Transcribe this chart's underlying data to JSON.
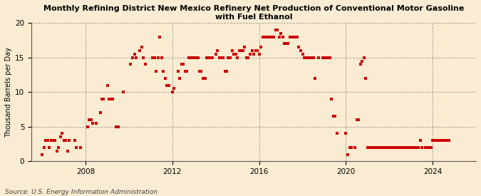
{
  "title": "Monthly Refining District New Mexico Refinery Net Production of Conventional Motor Gasoline\nwith Fuel Ethanol",
  "ylabel": "Thousand Barrels per Day",
  "source": "Source: U.S. Energy Information Administration",
  "background_color": "#faecd2",
  "marker_color": "#cc0000",
  "xlim": [
    2005.5,
    2026.0
  ],
  "ylim": [
    0,
    20
  ],
  "yticks": [
    0,
    5,
    10,
    15,
    20
  ],
  "xticks": [
    2008,
    2012,
    2016,
    2020,
    2024
  ],
  "data": [
    [
      2006.0,
      1.0
    ],
    [
      2006.08,
      2.0
    ],
    [
      2006.17,
      3.0
    ],
    [
      2006.25,
      3.0
    ],
    [
      2006.33,
      2.0
    ],
    [
      2006.42,
      3.0
    ],
    [
      2006.5,
      3.0
    ],
    [
      2006.58,
      3.0
    ],
    [
      2006.67,
      1.5
    ],
    [
      2006.75,
      2.0
    ],
    [
      2006.83,
      3.5
    ],
    [
      2006.92,
      4.0
    ],
    [
      2007.0,
      3.0
    ],
    [
      2007.08,
      3.0
    ],
    [
      2007.17,
      1.5
    ],
    [
      2007.25,
      3.0
    ],
    [
      2007.5,
      3.0
    ],
    [
      2007.58,
      2.0
    ],
    [
      2007.75,
      2.0
    ],
    [
      2008.08,
      5.0
    ],
    [
      2008.17,
      6.0
    ],
    [
      2008.25,
      6.0
    ],
    [
      2008.33,
      5.5
    ],
    [
      2008.5,
      5.5
    ],
    [
      2008.67,
      7.0
    ],
    [
      2008.75,
      9.0
    ],
    [
      2008.83,
      9.0
    ],
    [
      2009.0,
      11.0
    ],
    [
      2009.08,
      9.0
    ],
    [
      2009.17,
      9.0
    ],
    [
      2009.25,
      9.0
    ],
    [
      2009.42,
      5.0
    ],
    [
      2009.5,
      5.0
    ],
    [
      2009.75,
      10.0
    ],
    [
      2010.08,
      14.0
    ],
    [
      2010.17,
      15.0
    ],
    [
      2010.25,
      15.5
    ],
    [
      2010.33,
      15.0
    ],
    [
      2010.5,
      16.0
    ],
    [
      2010.58,
      16.5
    ],
    [
      2010.67,
      15.0
    ],
    [
      2010.75,
      14.0
    ],
    [
      2011.08,
      15.0
    ],
    [
      2011.17,
      15.0
    ],
    [
      2011.25,
      13.0
    ],
    [
      2011.33,
      15.0
    ],
    [
      2011.42,
      18.0
    ],
    [
      2011.5,
      15.0
    ],
    [
      2011.58,
      13.0
    ],
    [
      2011.67,
      12.0
    ],
    [
      2011.75,
      11.0
    ],
    [
      2011.83,
      11.0
    ],
    [
      2012.0,
      10.0
    ],
    [
      2012.08,
      10.5
    ],
    [
      2012.25,
      13.0
    ],
    [
      2012.33,
      12.0
    ],
    [
      2012.42,
      14.0
    ],
    [
      2012.5,
      14.0
    ],
    [
      2012.58,
      13.0
    ],
    [
      2012.67,
      13.0
    ],
    [
      2012.75,
      15.0
    ],
    [
      2012.83,
      15.0
    ],
    [
      2012.92,
      15.0
    ],
    [
      2013.0,
      15.0
    ],
    [
      2013.08,
      15.0
    ],
    [
      2013.17,
      15.0
    ],
    [
      2013.25,
      13.0
    ],
    [
      2013.33,
      13.0
    ],
    [
      2013.42,
      12.0
    ],
    [
      2013.5,
      12.0
    ],
    [
      2013.58,
      15.0
    ],
    [
      2013.67,
      15.0
    ],
    [
      2013.75,
      15.0
    ],
    [
      2013.83,
      15.0
    ],
    [
      2014.0,
      15.5
    ],
    [
      2014.08,
      16.0
    ],
    [
      2014.17,
      15.0
    ],
    [
      2014.25,
      15.0
    ],
    [
      2014.33,
      15.0
    ],
    [
      2014.42,
      13.0
    ],
    [
      2014.5,
      13.0
    ],
    [
      2014.58,
      15.0
    ],
    [
      2014.67,
      15.0
    ],
    [
      2014.75,
      16.0
    ],
    [
      2014.83,
      15.5
    ],
    [
      2014.92,
      15.5
    ],
    [
      2015.0,
      15.0
    ],
    [
      2015.08,
      16.0
    ],
    [
      2015.17,
      16.0
    ],
    [
      2015.25,
      16.0
    ],
    [
      2015.33,
      16.5
    ],
    [
      2015.42,
      15.0
    ],
    [
      2015.5,
      15.0
    ],
    [
      2015.58,
      15.5
    ],
    [
      2015.67,
      16.0
    ],
    [
      2015.75,
      15.5
    ],
    [
      2015.83,
      16.0
    ],
    [
      2015.92,
      16.0
    ],
    [
      2016.0,
      15.5
    ],
    [
      2016.08,
      16.5
    ],
    [
      2016.17,
      18.0
    ],
    [
      2016.25,
      18.0
    ],
    [
      2016.33,
      18.0
    ],
    [
      2016.42,
      18.0
    ],
    [
      2016.5,
      18.0
    ],
    [
      2016.58,
      18.0
    ],
    [
      2016.67,
      18.0
    ],
    [
      2016.75,
      19.0
    ],
    [
      2016.83,
      19.0
    ],
    [
      2016.92,
      18.0
    ],
    [
      2017.0,
      18.5
    ],
    [
      2017.08,
      18.0
    ],
    [
      2017.17,
      17.0
    ],
    [
      2017.25,
      17.0
    ],
    [
      2017.33,
      17.0
    ],
    [
      2017.42,
      18.0
    ],
    [
      2017.5,
      18.0
    ],
    [
      2017.58,
      18.0
    ],
    [
      2017.67,
      18.0
    ],
    [
      2017.75,
      18.0
    ],
    [
      2017.83,
      16.5
    ],
    [
      2017.92,
      16.0
    ],
    [
      2018.0,
      15.5
    ],
    [
      2018.08,
      15.0
    ],
    [
      2018.17,
      15.0
    ],
    [
      2018.25,
      15.0
    ],
    [
      2018.33,
      15.0
    ],
    [
      2018.42,
      15.0
    ],
    [
      2018.5,
      15.0
    ],
    [
      2018.58,
      12.0
    ],
    [
      2018.75,
      15.0
    ],
    [
      2018.92,
      15.0
    ],
    [
      2019.0,
      15.0
    ],
    [
      2019.08,
      15.0
    ],
    [
      2019.17,
      15.0
    ],
    [
      2019.25,
      15.0
    ],
    [
      2019.33,
      9.0
    ],
    [
      2019.42,
      6.5
    ],
    [
      2019.5,
      6.5
    ],
    [
      2019.58,
      4.0
    ],
    [
      2020.0,
      4.0
    ],
    [
      2020.08,
      1.0
    ],
    [
      2020.17,
      2.0
    ],
    [
      2020.25,
      2.0
    ],
    [
      2020.42,
      2.0
    ],
    [
      2020.5,
      6.0
    ],
    [
      2020.58,
      6.0
    ],
    [
      2020.67,
      14.0
    ],
    [
      2020.75,
      14.5
    ],
    [
      2020.83,
      15.0
    ],
    [
      2020.92,
      12.0
    ],
    [
      2021.0,
      2.0
    ],
    [
      2021.08,
      2.0
    ],
    [
      2021.17,
      2.0
    ],
    [
      2021.25,
      2.0
    ],
    [
      2021.33,
      2.0
    ],
    [
      2021.42,
      2.0
    ],
    [
      2021.5,
      2.0
    ],
    [
      2021.58,
      2.0
    ],
    [
      2021.67,
      2.0
    ],
    [
      2021.75,
      2.0
    ],
    [
      2021.83,
      2.0
    ],
    [
      2021.92,
      2.0
    ],
    [
      2022.0,
      2.0
    ],
    [
      2022.08,
      2.0
    ],
    [
      2022.17,
      2.0
    ],
    [
      2022.25,
      2.0
    ],
    [
      2022.33,
      2.0
    ],
    [
      2022.42,
      2.0
    ],
    [
      2022.5,
      2.0
    ],
    [
      2022.58,
      2.0
    ],
    [
      2022.67,
      2.0
    ],
    [
      2022.75,
      2.0
    ],
    [
      2022.83,
      2.0
    ],
    [
      2022.92,
      2.0
    ],
    [
      2023.0,
      2.0
    ],
    [
      2023.08,
      2.0
    ],
    [
      2023.17,
      2.0
    ],
    [
      2023.25,
      2.0
    ],
    [
      2023.33,
      2.0
    ],
    [
      2023.42,
      3.0
    ],
    [
      2023.5,
      2.0
    ],
    [
      2023.67,
      2.0
    ],
    [
      2023.75,
      2.0
    ],
    [
      2023.83,
      2.0
    ],
    [
      2023.92,
      2.0
    ],
    [
      2024.0,
      3.0
    ],
    [
      2024.08,
      3.0
    ],
    [
      2024.17,
      3.0
    ],
    [
      2024.25,
      3.0
    ],
    [
      2024.33,
      3.0
    ],
    [
      2024.42,
      3.0
    ],
    [
      2024.5,
      3.0
    ],
    [
      2024.58,
      3.0
    ],
    [
      2024.67,
      3.0
    ],
    [
      2024.75,
      3.0
    ]
  ]
}
